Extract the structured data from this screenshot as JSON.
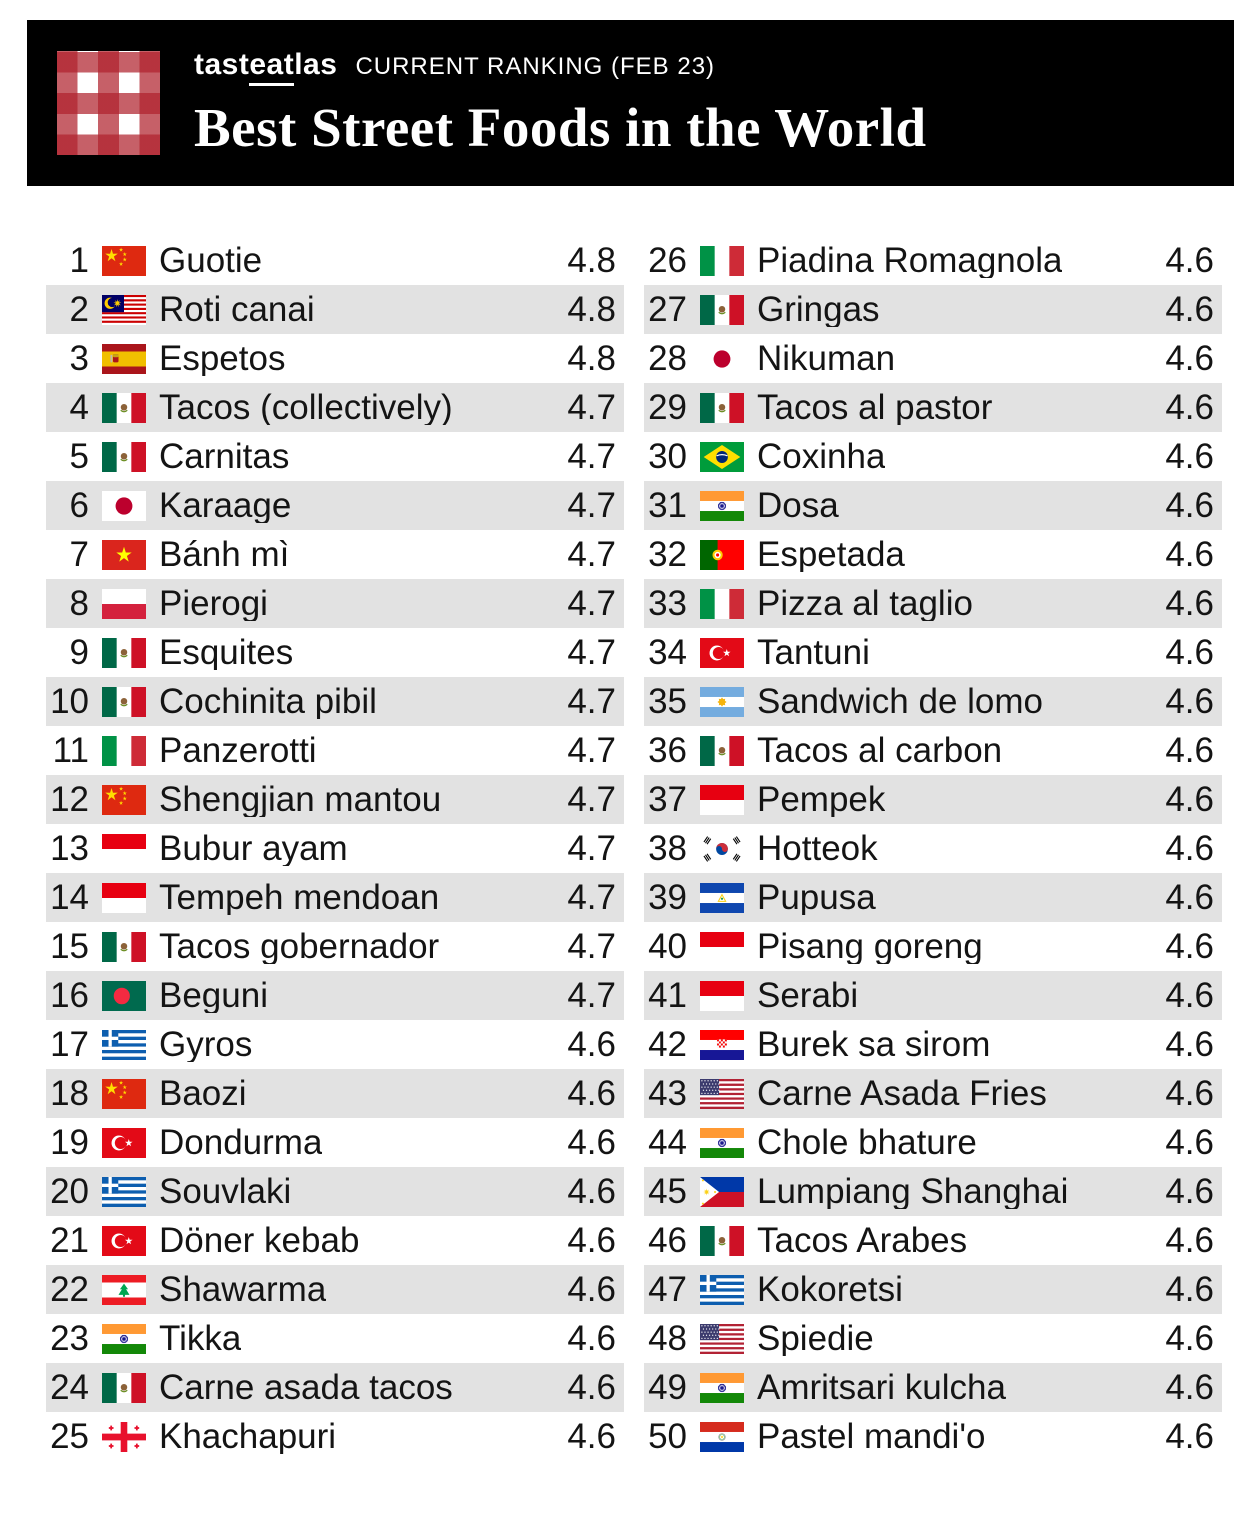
{
  "header": {
    "brand_pre": "tast",
    "brand_underlined": "eat",
    "brand_post": "las",
    "ranking_label": "CURRENT RANKING (FEB 23)",
    "title": "Best Street Foods in the World"
  },
  "colors": {
    "banner_bg": "#000000",
    "row_alt_bg": "#e2e2e2",
    "gingham_red": "#b0222d",
    "text": "#141414"
  },
  "chart_data": {
    "type": "table",
    "title": "Best Street Foods in the World",
    "subtitle": "tasteatlas CURRENT RANKING (FEB 23)",
    "columns": [
      "rank",
      "country_flag",
      "food_name",
      "rating"
    ],
    "rating_scale_max": 5,
    "rows": [
      {
        "rank": 1,
        "country": "China",
        "country_code": "cn",
        "food": "Guotie",
        "rating": 4.8
      },
      {
        "rank": 2,
        "country": "Malaysia",
        "country_code": "my",
        "food": "Roti canai",
        "rating": 4.8
      },
      {
        "rank": 3,
        "country": "Spain",
        "country_code": "es",
        "food": "Espetos",
        "rating": 4.8
      },
      {
        "rank": 4,
        "country": "Mexico",
        "country_code": "mx",
        "food": "Tacos (collectively)",
        "rating": 4.7
      },
      {
        "rank": 5,
        "country": "Mexico",
        "country_code": "mx",
        "food": "Carnitas",
        "rating": 4.7
      },
      {
        "rank": 6,
        "country": "Japan",
        "country_code": "jp",
        "food": "Karaage",
        "rating": 4.7
      },
      {
        "rank": 7,
        "country": "Vietnam",
        "country_code": "vn",
        "food": "Bánh mì",
        "rating": 4.7
      },
      {
        "rank": 8,
        "country": "Poland",
        "country_code": "pl",
        "food": "Pierogi",
        "rating": 4.7
      },
      {
        "rank": 9,
        "country": "Mexico",
        "country_code": "mx",
        "food": "Esquites",
        "rating": 4.7
      },
      {
        "rank": 10,
        "country": "Mexico",
        "country_code": "mx",
        "food": "Cochinita pibil",
        "rating": 4.7
      },
      {
        "rank": 11,
        "country": "Italy",
        "country_code": "it",
        "food": "Panzerotti",
        "rating": 4.7
      },
      {
        "rank": 12,
        "country": "China",
        "country_code": "cn",
        "food": "Shengjian mantou",
        "rating": 4.7
      },
      {
        "rank": 13,
        "country": "Indonesia",
        "country_code": "id",
        "food": "Bubur ayam",
        "rating": 4.7
      },
      {
        "rank": 14,
        "country": "Indonesia",
        "country_code": "id",
        "food": "Tempeh mendoan",
        "rating": 4.7
      },
      {
        "rank": 15,
        "country": "Mexico",
        "country_code": "mx",
        "food": "Tacos gobernador",
        "rating": 4.7
      },
      {
        "rank": 16,
        "country": "Bangladesh",
        "country_code": "bd",
        "food": "Beguni",
        "rating": 4.7
      },
      {
        "rank": 17,
        "country": "Greece",
        "country_code": "gr",
        "food": "Gyros",
        "rating": 4.6
      },
      {
        "rank": 18,
        "country": "China",
        "country_code": "cn",
        "food": "Baozi",
        "rating": 4.6
      },
      {
        "rank": 19,
        "country": "Turkey",
        "country_code": "tr",
        "food": "Dondurma",
        "rating": 4.6
      },
      {
        "rank": 20,
        "country": "Greece",
        "country_code": "gr",
        "food": "Souvlaki",
        "rating": 4.6
      },
      {
        "rank": 21,
        "country": "Turkey",
        "country_code": "tr",
        "food": "Döner kebab",
        "rating": 4.6
      },
      {
        "rank": 22,
        "country": "Lebanon",
        "country_code": "lb",
        "food": "Shawarma",
        "rating": 4.6
      },
      {
        "rank": 23,
        "country": "India",
        "country_code": "in",
        "food": "Tikka",
        "rating": 4.6
      },
      {
        "rank": 24,
        "country": "Mexico",
        "country_code": "mx",
        "food": "Carne asada tacos",
        "rating": 4.6
      },
      {
        "rank": 25,
        "country": "Georgia",
        "country_code": "ge",
        "food": "Khachapuri",
        "rating": 4.6
      },
      {
        "rank": 26,
        "country": "Italy",
        "country_code": "it",
        "food": "Piadina Romagnola",
        "rating": 4.6
      },
      {
        "rank": 27,
        "country": "Mexico",
        "country_code": "mx",
        "food": "Gringas",
        "rating": 4.6
      },
      {
        "rank": 28,
        "country": "Japan",
        "country_code": "jp",
        "food": "Nikuman",
        "rating": 4.6
      },
      {
        "rank": 29,
        "country": "Mexico",
        "country_code": "mx",
        "food": "Tacos al pastor",
        "rating": 4.6
      },
      {
        "rank": 30,
        "country": "Brazil",
        "country_code": "br",
        "food": "Coxinha",
        "rating": 4.6
      },
      {
        "rank": 31,
        "country": "India",
        "country_code": "in",
        "food": "Dosa",
        "rating": 4.6
      },
      {
        "rank": 32,
        "country": "Portugal",
        "country_code": "pt",
        "food": "Espetada",
        "rating": 4.6
      },
      {
        "rank": 33,
        "country": "Italy",
        "country_code": "it",
        "food": "Pizza al taglio",
        "rating": 4.6
      },
      {
        "rank": 34,
        "country": "Turkey",
        "country_code": "tr",
        "food": "Tantuni",
        "rating": 4.6
      },
      {
        "rank": 35,
        "country": "Argentina",
        "country_code": "ar",
        "food": "Sandwich de lomo",
        "rating": 4.6
      },
      {
        "rank": 36,
        "country": "Mexico",
        "country_code": "mx",
        "food": "Tacos al carbon",
        "rating": 4.6
      },
      {
        "rank": 37,
        "country": "Indonesia",
        "country_code": "id",
        "food": "Pempek",
        "rating": 4.6
      },
      {
        "rank": 38,
        "country": "South Korea",
        "country_code": "kr",
        "food": "Hotteok",
        "rating": 4.6
      },
      {
        "rank": 39,
        "country": "El Salvador",
        "country_code": "sv",
        "food": "Pupusa",
        "rating": 4.6
      },
      {
        "rank": 40,
        "country": "Indonesia",
        "country_code": "id",
        "food": "Pisang goreng",
        "rating": 4.6
      },
      {
        "rank": 41,
        "country": "Indonesia",
        "country_code": "id",
        "food": "Serabi",
        "rating": 4.6
      },
      {
        "rank": 42,
        "country": "Croatia",
        "country_code": "hr",
        "food": "Burek sa sirom",
        "rating": 4.6
      },
      {
        "rank": 43,
        "country": "United States",
        "country_code": "us",
        "food": "Carne Asada Fries",
        "rating": 4.6
      },
      {
        "rank": 44,
        "country": "India",
        "country_code": "in",
        "food": "Chole bhature",
        "rating": 4.6
      },
      {
        "rank": 45,
        "country": "Philippines",
        "country_code": "ph",
        "food": "Lumpiang Shanghai",
        "rating": 4.6
      },
      {
        "rank": 46,
        "country": "Mexico",
        "country_code": "mx",
        "food": "Tacos Arabes",
        "rating": 4.6
      },
      {
        "rank": 47,
        "country": "Greece",
        "country_code": "gr",
        "food": "Kokoretsi",
        "rating": 4.6
      },
      {
        "rank": 48,
        "country": "United States",
        "country_code": "us",
        "food": "Spiedie",
        "rating": 4.6
      },
      {
        "rank": 49,
        "country": "India",
        "country_code": "in",
        "food": "Amritsari kulcha",
        "rating": 4.6
      },
      {
        "rank": 50,
        "country": "Paraguay",
        "country_code": "py",
        "food": "Pastel mandi'o",
        "rating": 4.6
      }
    ]
  }
}
